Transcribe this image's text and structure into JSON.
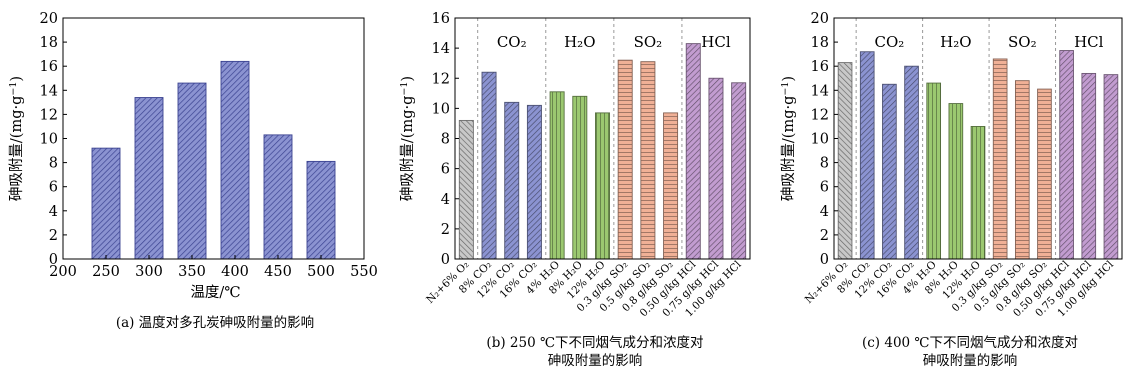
{
  "chart_data": [
    {
      "type": "bar",
      "caption": "(a) 温度对多孔炭砷吸附量的影响",
      "xlabel": "温度/℃",
      "ylabel": "砷吸附量/(mg·g⁻¹)",
      "xlim": [
        200,
        550
      ],
      "xticks": [
        200,
        250,
        300,
        350,
        400,
        450,
        500,
        550
      ],
      "ylim": [
        0,
        20
      ],
      "yticks": [
        0,
        2,
        4,
        6,
        8,
        10,
        12,
        14,
        16,
        18,
        20
      ],
      "x": [
        250,
        300,
        350,
        400,
        450,
        500
      ],
      "values": [
        9.2,
        13.4,
        14.6,
        16.4,
        10.3,
        8.1
      ],
      "bar_color": "#8b93d1",
      "grid": false
    },
    {
      "type": "bar",
      "caption_line1": "(b) 250 ℃下不同烟气成分和浓度对",
      "caption_line2": "砷吸附量的影响",
      "ylabel": "砷吸附量/(mg·g⁻¹)",
      "ylim": [
        0,
        16
      ],
      "yticks": [
        0,
        2,
        4,
        6,
        8,
        10,
        12,
        14,
        16
      ],
      "categories": [
        "N₂+6% O₂",
        "8% CO₂",
        "12% CO₂",
        "16% CO₂",
        "4% H₂O",
        "8% H₂O",
        "12% H₂O",
        "0.3 g/kg SO₂",
        "0.5 g/kg SO₂",
        "0.8 g/kg SO₂",
        "0.50 g/kg HCl",
        "0.75 g/kg HCl",
        "1.00 g/kg HCl"
      ],
      "values": [
        9.2,
        12.4,
        10.4,
        10.2,
        11.1,
        10.8,
        9.7,
        13.2,
        13.1,
        9.7,
        14.3,
        12.0,
        11.7
      ],
      "groups": [
        "CO₂",
        "H₂O",
        "SO₂",
        "HCl"
      ],
      "bar_colors": [
        "#c8c8c8",
        "#8b93d1",
        "#8b93d1",
        "#8b93d1",
        "#9bc870",
        "#9bc870",
        "#9bc870",
        "#f0b096",
        "#f0b096",
        "#f0b096",
        "#c29cd0",
        "#c29cd0",
        "#c29cd0"
      ],
      "grid": false
    },
    {
      "type": "bar",
      "caption_line1": "(c) 400 ℃下不同烟气成分和浓度对",
      "caption_line2": "砷吸附量的影响",
      "ylabel": "砷吸附量/(mg·g⁻¹)",
      "ylim": [
        0,
        20
      ],
      "yticks": [
        0,
        2,
        4,
        6,
        8,
        10,
        12,
        14,
        16,
        18,
        20
      ],
      "categories": [
        "N₂+6% O₂",
        "8% CO₂",
        "12% CO₂",
        "16% CO₂",
        "4% H₂O",
        "8% H₂O",
        "12% H₂O",
        "0.3 g/kg SO₂",
        "0.5 g/kg SO₂",
        "0.8 g/kg SO₂",
        "0.50 g/kg HCl",
        "0.75 g/kg HCl",
        "1.00 g/kg HCl"
      ],
      "values": [
        16.3,
        17.2,
        14.5,
        16.0,
        14.6,
        12.9,
        11.0,
        16.6,
        14.8,
        14.1,
        17.3,
        15.4,
        15.3
      ],
      "groups": [
        "CO₂",
        "H₂O",
        "SO₂",
        "HCl"
      ],
      "bar_colors": [
        "#c8c8c8",
        "#8b93d1",
        "#8b93d1",
        "#8b93d1",
        "#9bc870",
        "#9bc870",
        "#9bc870",
        "#f0b096",
        "#f0b096",
        "#f0b096",
        "#c29cd0",
        "#c29cd0",
        "#c29cd0"
      ],
      "grid": false
    }
  ]
}
